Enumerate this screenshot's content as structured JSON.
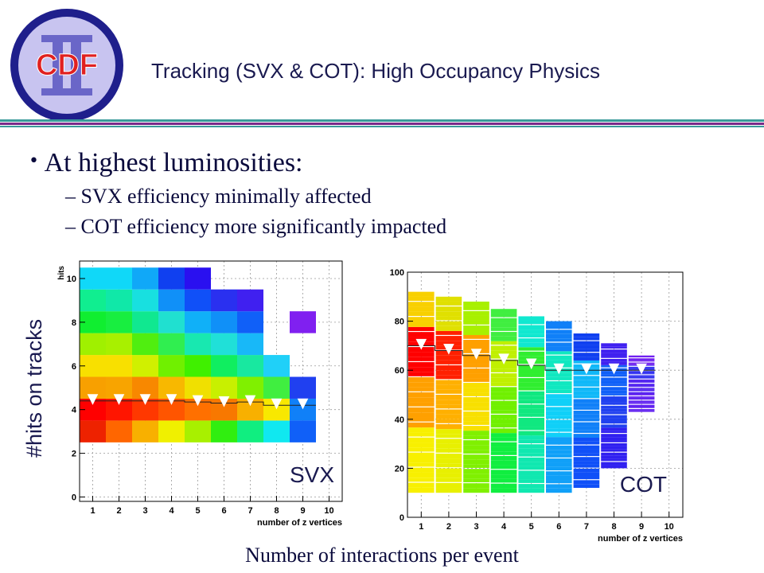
{
  "header": {
    "logo_text": "CDF",
    "title": "Tracking (SVX & COT): High Occupancy Physics",
    "colors": {
      "logo_ring": "#1f1f8c",
      "logo_fill": "#c8c4f0",
      "logo_text": "#e02020",
      "rule_teal": "#3a9a9a",
      "rule_purple": "#7a2a8a"
    }
  },
  "bullets": {
    "main": "At highest luminosities:",
    "subs": [
      "SVX efficiency minimally affected",
      "COT efficiency more significantly impacted"
    ]
  },
  "figure": {
    "y_label": "#hits on tracks",
    "x_label": "Number of interactions per event"
  },
  "chart_data": [
    {
      "type": "heatmap",
      "label": "SVX",
      "ylabel": "hits",
      "xlabel": "number of z vertices",
      "xlim": [
        0.5,
        10.5
      ],
      "ylim": [
        -0.2,
        10.8
      ],
      "x_ticks": [
        "1",
        "2",
        "3",
        "4",
        "5",
        "6",
        "7",
        "8",
        "9",
        "10"
      ],
      "y_ticks": [
        "0",
        "2",
        "4",
        "6",
        "8",
        "10"
      ],
      "grid": true,
      "columns": [
        {
          "x": 1,
          "y_range": [
            2.5,
            10.5
          ],
          "colors": [
            "#ee2200",
            "#ff0000",
            "#f8a000",
            "#f8e000",
            "#a0f000",
            "#10ee30",
            "#10ee90",
            "#10d8f8"
          ]
        },
        {
          "x": 2,
          "y_range": [
            2.5,
            10.5
          ],
          "colors": [
            "#ff6600",
            "#ff1500",
            "#f8a400",
            "#f8e000",
            "#a8f000",
            "#18ee40",
            "#10e8a8",
            "#10d8f8"
          ]
        },
        {
          "x": 3,
          "y_range": [
            2.5,
            10.5
          ],
          "colors": [
            "#f8b000",
            "#ff3800",
            "#f88800",
            "#d0f000",
            "#50ee10",
            "#10e890",
            "#18e0e0",
            "#10a8f8"
          ]
        },
        {
          "x": 4,
          "y_range": [
            2.5,
            10.5
          ],
          "colors": [
            "#f0f000",
            "#ff5500",
            "#f8b800",
            "#70f000",
            "#30ee50",
            "#20e0d0",
            "#1090f8",
            "#1040f0"
          ]
        },
        {
          "x": 5,
          "y_range": [
            2.5,
            10.5
          ],
          "colors": [
            "#a8f000",
            "#ff7000",
            "#f0e000",
            "#40f000",
            "#18e8b0",
            "#10b0f8",
            "#1050f8",
            "#2a10f0"
          ]
        },
        {
          "x": 6,
          "y_range": [
            2.5,
            9.5
          ],
          "colors": [
            "#30ee10",
            "#f87800",
            "#c8f000",
            "#10ee60",
            "#20e0d8",
            "#1090f8",
            "#2a30f0"
          ]
        },
        {
          "x": 7,
          "y_range": [
            2.5,
            9.5
          ],
          "colors": [
            "#10ee80",
            "#f8b000",
            "#80f000",
            "#18e8a0",
            "#18b8f8",
            "#1060f8",
            "#4020f0"
          ]
        },
        {
          "x": 8,
          "y_range": [
            2.5,
            6.5
          ],
          "colors": [
            "#10e8f0",
            "#f8e800",
            "#40ee40",
            "#20d0f8"
          ]
        },
        {
          "x": 9,
          "y_range": [
            2.5,
            5.5
          ],
          "colors": [
            "#1060f8",
            "#1080f8",
            "#2040f0"
          ]
        },
        {
          "x": 9,
          "y_range": [
            7.5,
            8.5
          ],
          "colors": [
            "#8020f0"
          ]
        }
      ],
      "series": [
        {
          "name": "",
          "x": [
            1,
            2,
            3,
            4,
            5,
            6,
            7,
            8,
            9
          ],
          "y": [
            4.4,
            4.4,
            4.4,
            4.4,
            4.35,
            4.3,
            4.35,
            4.2,
            4.2
          ]
        }
      ]
    },
    {
      "type": "heatmap",
      "label": "COT",
      "ylabel": "",
      "xlabel": "number of z vertices",
      "xlim": [
        0.5,
        10.5
      ],
      "ylim": [
        0,
        100
      ],
      "x_ticks": [
        "1",
        "2",
        "3",
        "4",
        "5",
        "6",
        "7",
        "8",
        "9",
        "10"
      ],
      "y_ticks": [
        "0",
        "20",
        "40",
        "60",
        "80",
        "100"
      ],
      "grid": true,
      "columns": [
        {
          "x": 1,
          "y_range": [
            10,
            92
          ],
          "core": "#ff0000",
          "mid": "#ffa000",
          "low": "#f8f000",
          "high": "#f8d000"
        },
        {
          "x": 2,
          "y_range": [
            10,
            90
          ],
          "core": "#ff2000",
          "mid": "#ffb000",
          "low": "#e8f000",
          "high": "#e0e000"
        },
        {
          "x": 3,
          "y_range": [
            10,
            88
          ],
          "core": "#ffa000",
          "mid": "#f8e000",
          "low": "#80f000",
          "high": "#a8f000"
        },
        {
          "x": 4,
          "y_range": [
            10,
            85
          ],
          "core": "#c0f000",
          "mid": "#70f000",
          "low": "#10ee40",
          "high": "#40ee40"
        },
        {
          "x": 5,
          "y_range": [
            10,
            82
          ],
          "core": "#30ee30",
          "mid": "#10e880",
          "low": "#10e8b0",
          "high": "#10e8d0"
        },
        {
          "x": 6,
          "y_range": [
            10,
            80
          ],
          "core": "#10e8c0",
          "mid": "#10d0f8",
          "low": "#10a0f8",
          "high": "#1080f8"
        },
        {
          "x": 7,
          "y_range": [
            12,
            75
          ],
          "core": "#10b8f8",
          "mid": "#1080f8",
          "low": "#1050f8",
          "high": "#1040f0"
        },
        {
          "x": 8,
          "y_range": [
            20,
            71
          ],
          "core": "#1060f8",
          "mid": "#2040f0",
          "low": "#3020f0",
          "high": "#4020f0"
        },
        {
          "x": 9,
          "y_range": [
            43,
            66
          ],
          "core": "#3030f0",
          "mid": "#5020f0",
          "low": "#6020f0",
          "high": "#7020f0"
        }
      ],
      "series": [
        {
          "name": "",
          "x": [
            1,
            2,
            3,
            4,
            5,
            6,
            7,
            8,
            9
          ],
          "y": [
            70,
            68,
            66,
            64,
            62,
            60,
            60,
            60,
            60
          ]
        }
      ]
    }
  ]
}
